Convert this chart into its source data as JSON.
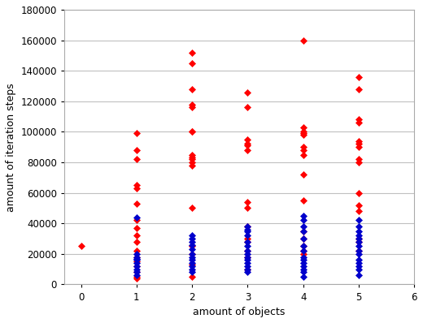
{
  "title": "",
  "xlabel": "amount of objects",
  "ylabel": "amount of iteration steps",
  "xlim": [
    -0.3,
    6
  ],
  "ylim": [
    0,
    180000
  ],
  "yticks": [
    0,
    20000,
    40000,
    60000,
    80000,
    100000,
    120000,
    140000,
    160000,
    180000
  ],
  "xticks": [
    0,
    1,
    2,
    3,
    4,
    5,
    6
  ],
  "background_color": "#ffffff",
  "plot_bg_color": "#ffffff",
  "red_color": "#ff0000",
  "blue_color": "#0000cc",
  "red_x0": [
    0
  ],
  "red_y0": [
    25000
  ],
  "red_x1": [
    1,
    1,
    1,
    1,
    1,
    1,
    1,
    1,
    1,
    1,
    1,
    1,
    1,
    1,
    1,
    1,
    1
  ],
  "red_y1": [
    99000,
    88000,
    82000,
    65000,
    63000,
    53000,
    42000,
    37000,
    32000,
    28000,
    22000,
    18000,
    15000,
    12000,
    8000,
    5000,
    4000
  ],
  "blue_x1": [
    1,
    1,
    1,
    1,
    1,
    1,
    1,
    1,
    1,
    1
  ],
  "blue_y1": [
    44000,
    20000,
    18000,
    17000,
    16000,
    14000,
    12000,
    10000,
    8000,
    6000
  ],
  "red_x2": [
    2,
    2,
    2,
    2,
    2,
    2,
    2,
    2,
    2,
    2,
    2,
    2,
    2,
    2,
    2,
    2,
    2
  ],
  "red_y2": [
    152000,
    145000,
    128000,
    118000,
    116000,
    100000,
    100000,
    85000,
    83000,
    82000,
    80000,
    78000,
    50000,
    25000,
    20000,
    13000,
    5000
  ],
  "blue_x2": [
    2,
    2,
    2,
    2,
    2,
    2,
    2,
    2,
    2,
    2,
    2,
    2
  ],
  "blue_y2": [
    32000,
    30000,
    28000,
    26000,
    23000,
    20000,
    18000,
    16000,
    14000,
    12000,
    10000,
    8000
  ],
  "red_x3": [
    3,
    3,
    3,
    3,
    3,
    3,
    3,
    3,
    3,
    3,
    3,
    3,
    3,
    3
  ],
  "red_y3": [
    126000,
    116000,
    95000,
    92000,
    91000,
    88000,
    54000,
    50000,
    38000,
    30000,
    28000,
    22000,
    18000,
    10000
  ],
  "blue_x3": [
    3,
    3,
    3,
    3,
    3,
    3,
    3,
    3,
    3,
    3,
    3,
    3,
    3,
    3
  ],
  "blue_y3": [
    38000,
    36000,
    35000,
    32000,
    28000,
    25000,
    22000,
    20000,
    18000,
    16000,
    14000,
    12000,
    10000,
    8000
  ],
  "red_x4": [
    4,
    4,
    4,
    4,
    4,
    4,
    4,
    4,
    4,
    4,
    4,
    4,
    4,
    4,
    4
  ],
  "red_y4": [
    160000,
    103000,
    100000,
    99000,
    98000,
    90000,
    88000,
    85000,
    72000,
    55000,
    35000,
    30000,
    25000,
    22000,
    20000
  ],
  "blue_x4": [
    4,
    4,
    4,
    4,
    4,
    4,
    4,
    4,
    4,
    4,
    4,
    4,
    4,
    4
  ],
  "blue_y4": [
    45000,
    42000,
    38000,
    35000,
    30000,
    25000,
    22000,
    18000,
    16000,
    14000,
    12000,
    10000,
    8000,
    5000
  ],
  "red_x5": [
    5,
    5,
    5,
    5,
    5,
    5,
    5,
    5,
    5,
    5,
    5,
    5,
    5,
    5,
    5
  ],
  "red_y5": [
    136000,
    128000,
    108000,
    106000,
    94000,
    92000,
    90000,
    82000,
    80000,
    60000,
    52000,
    48000,
    30000,
    28000,
    22000
  ],
  "blue_x5": [
    5,
    5,
    5,
    5,
    5,
    5,
    5,
    5,
    5,
    5,
    5,
    5,
    5,
    5
  ],
  "blue_y5": [
    42000,
    38000,
    35000,
    32000,
    30000,
    28000,
    25000,
    22000,
    20000,
    16000,
    14000,
    12000,
    10000,
    6000
  ]
}
